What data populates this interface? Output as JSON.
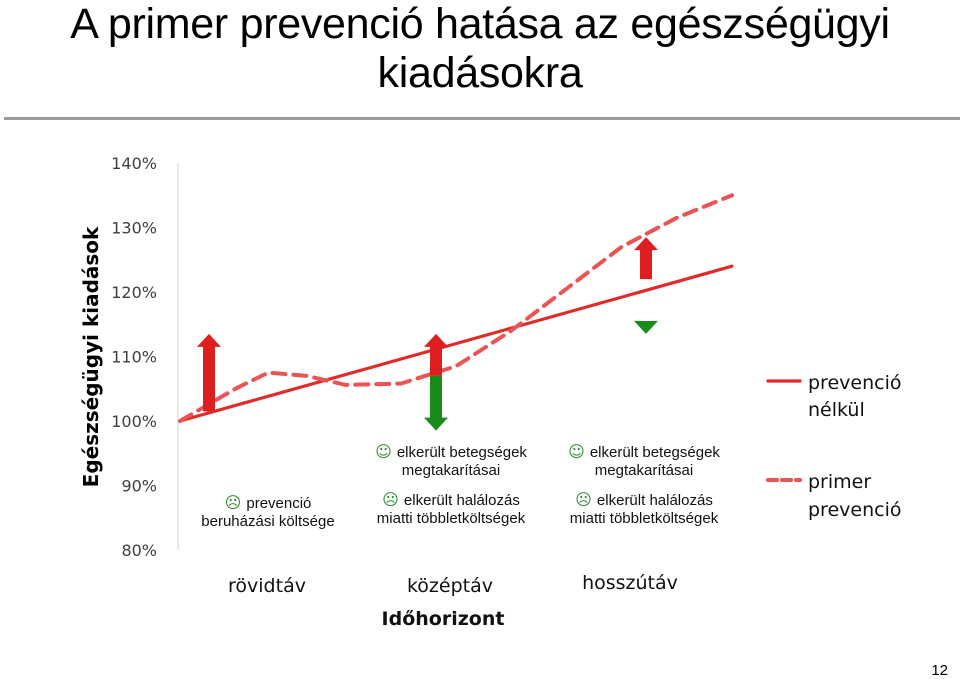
{
  "title_lines": [
    "A primer prevenció hatása az egészségügyi",
    "kiadásokra"
  ],
  "page_number": "12",
  "colors": {
    "solid_line": "#e12b2b",
    "dashed_line": "#ea5454",
    "up_arrow": "#dd1f1f",
    "down_arrow": "#1a8a1a",
    "axis": "#d0d0d0",
    "tick_text": "#404040"
  },
  "chart_data": {
    "type": "line",
    "ylabel": "Egészségügyi kiadások",
    "xlabel": "Időhorizont",
    "ylim": [
      80,
      140
    ],
    "yticks": [
      "80%",
      "90%",
      "100%",
      "110%",
      "120%",
      "130%",
      "140%"
    ],
    "x_categories": [
      "rövidtáv",
      "középtáv",
      "hosszútáv"
    ],
    "series": [
      {
        "name": "prevenció nélkül",
        "style": "solid",
        "x": [
          0,
          1
        ],
        "y": [
          100,
          124
        ]
      },
      {
        "name": "primer prevenció",
        "style": "dashed",
        "x": [
          0,
          0.1,
          0.16,
          0.23,
          0.3,
          0.4,
          0.5,
          0.6,
          0.7,
          0.8,
          0.9,
          1
        ],
        "y": [
          100,
          105,
          107.5,
          107,
          105.6,
          105.8,
          108.5,
          114,
          120.5,
          127,
          131.5,
          135
        ]
      }
    ],
    "annotations": [
      {
        "period": "rövidtáv",
        "lines": [
          {
            "icon": "☹",
            "text": "prevenció"
          },
          {
            "icon": "",
            "text": "beruházási költsége"
          }
        ]
      },
      {
        "period": "középtáv",
        "lines": [
          {
            "icon": "☺",
            "text": "elkerült betegségek"
          },
          {
            "icon": "",
            "text": "megtakarításai"
          },
          {
            "icon": "☹",
            "text": "elkerült halálozás"
          },
          {
            "icon": "",
            "text": "miatti többletköltségek"
          }
        ]
      },
      {
        "period": "hosszútáv",
        "lines": [
          {
            "icon": "☺",
            "text": "elkerült betegségek"
          },
          {
            "icon": "",
            "text": "megtakarításai"
          },
          {
            "icon": "☹",
            "text": "elkerült halálozás"
          },
          {
            "icon": "",
            "text": "miatti többletköltségek"
          }
        ]
      }
    ],
    "arrows": [
      {
        "period": "rövidtáv",
        "direction": "up",
        "from": 101.5,
        "to": 113.5
      },
      {
        "period": "középtáv",
        "direction": "up",
        "from": 107,
        "to": 113.5
      },
      {
        "period": "középtáv",
        "direction": "down",
        "from": 107,
        "to": 98.5
      },
      {
        "period": "hosszútáv",
        "direction": "up",
        "from": 122,
        "to": 128.5
      },
      {
        "period": "hosszútáv",
        "direction": "down",
        "from": 115.5,
        "to": 113.5
      }
    ],
    "legend": [
      {
        "label_lines": [
          "prevenció",
          "nélkül"
        ],
        "style": "solid"
      },
      {
        "label_lines": [
          "primer",
          "prevenció"
        ],
        "style": "dashed"
      }
    ],
    "legend_position": "right",
    "grid": false
  }
}
